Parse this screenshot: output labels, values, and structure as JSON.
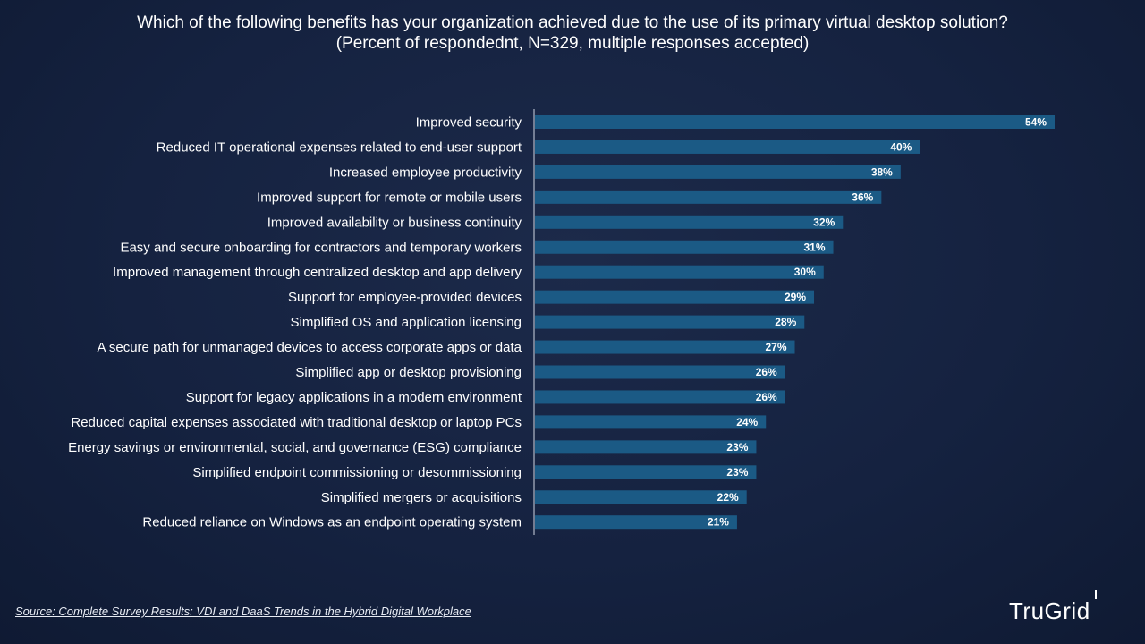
{
  "title": {
    "line1": "Which of the following benefits has your organization achieved due to the use of its primary virtual desktop solution?",
    "line2": "(Percent of respondednt, N=329, multiple responses accepted)"
  },
  "source": "Source: Complete Survey Results: VDI and DaaS Trends in the Hybrid Digital Workplace",
  "logo": "TruGrid",
  "colors": {
    "bar": "#1b5a85",
    "axis": "#d0d6e2",
    "background": "#152240"
  },
  "chart_data": {
    "type": "bar",
    "orientation": "horizontal",
    "categories": [
      "Improved security",
      "Reduced IT operational expenses related to end-user support",
      "Increased employee productivity",
      "Improved support for remote or mobile users",
      "Improved availability or business continuity",
      "Easy and secure onboarding for contractors and temporary workers",
      "Improved management through centralized desktop and app delivery",
      "Support for employee-provided devices",
      "Simplified OS and application licensing",
      "A secure path for unmanaged devices to access corporate apps or data",
      "Simplified app or desktop provisioning",
      "Support for legacy applications in a modern environment",
      "Reduced capital expenses associated with traditional desktop or laptop PCs",
      "Energy savings or environmental, social, and governance (ESG) compliance",
      "Simplified endpoint commissioning or desommissioning",
      "Simplified mergers or acquisitions",
      "Reduced reliance on Windows as an endpoint operating system"
    ],
    "values": [
      54,
      40,
      38,
      36,
      32,
      31,
      30,
      29,
      28,
      27,
      26,
      26,
      24,
      23,
      23,
      22,
      21
    ],
    "value_labels": [
      "54%",
      "40%",
      "38%",
      "36%",
      "32%",
      "31%",
      "30%",
      "29%",
      "28%",
      "27%",
      "26%",
      "26%",
      "24%",
      "23%",
      "23%",
      "22%",
      "21%"
    ],
    "xlim": [
      0,
      60
    ],
    "grid": false,
    "legend": "none"
  }
}
